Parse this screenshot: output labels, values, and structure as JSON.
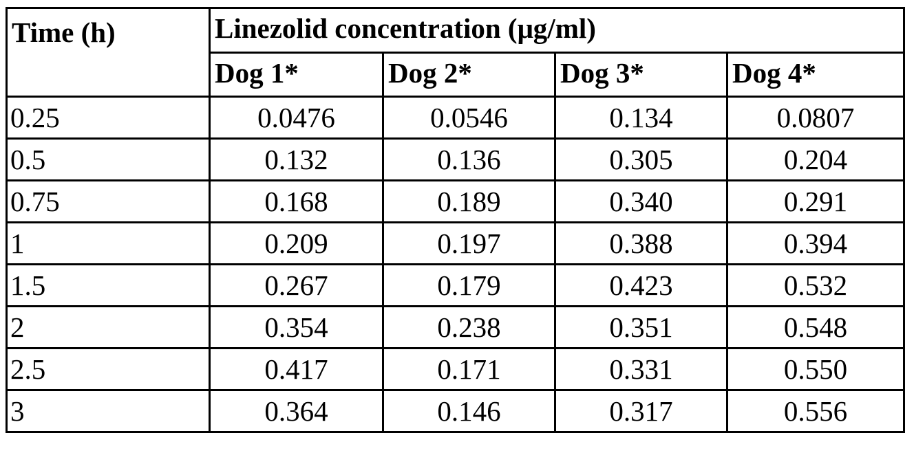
{
  "table": {
    "header": {
      "time_label": "Time (h)",
      "group_label": "Linezolid concentration (μg/ml)",
      "dogs": [
        "Dog 1*",
        "Dog 2*",
        "Dog 3*",
        "Dog 4*"
      ]
    },
    "rows": [
      {
        "time": "0.25",
        "values": [
          "0.0476",
          "0.0546",
          "0.134",
          "0.0807"
        ]
      },
      {
        "time": "0.5",
        "values": [
          "0.132",
          "0.136",
          "0.305",
          "0.204"
        ]
      },
      {
        "time": "0.75",
        "values": [
          "0.168",
          "0.189",
          "0.340",
          "0.291"
        ]
      },
      {
        "time": "1",
        "values": [
          "0.209",
          "0.197",
          "0.388",
          "0.394"
        ]
      },
      {
        "time": "1.5",
        "values": [
          "0.267",
          "0.179",
          "0.423",
          "0.532"
        ]
      },
      {
        "time": "2",
        "values": [
          "0.354",
          "0.238",
          "0.351",
          "0.548"
        ]
      },
      {
        "time": "2.5",
        "values": [
          "0.417",
          "0.171",
          "0.331",
          "0.550"
        ]
      },
      {
        "time": "3",
        "values": [
          "0.364",
          "0.146",
          "0.317",
          "0.556"
        ]
      }
    ]
  }
}
